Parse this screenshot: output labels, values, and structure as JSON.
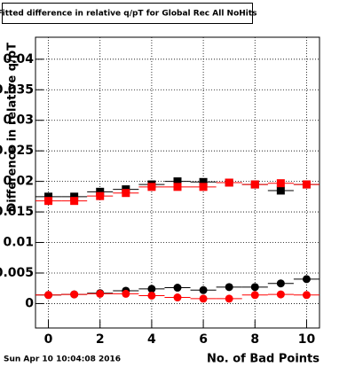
{
  "chart_data": {
    "type": "scatter",
    "title": "Fitted difference in relative q/pT for Global Rec All NoHits",
    "x_label": "No. of Bad Points",
    "y_label": "Difference in relative q/pT",
    "footer": "Sun Apr 10 10:04:08 2016",
    "x": [
      0,
      1,
      2,
      3,
      4,
      5,
      6,
      7,
      8,
      9,
      10
    ],
    "x_error": 0.5,
    "series": [
      {
        "color": "#000000",
        "marker": "square",
        "values": [
          0.0175,
          0.0175,
          0.0183,
          0.0187,
          0.0195,
          0.02,
          0.0199,
          0.0198,
          0.0195,
          0.0185,
          0.0195
        ]
      },
      {
        "color": "#ff0000",
        "marker": "square",
        "values": [
          0.0168,
          0.0168,
          0.0176,
          0.0181,
          0.0191,
          0.0191,
          0.0191,
          0.0198,
          0.0195,
          0.0197,
          0.0195
        ]
      },
      {
        "color": "#000000",
        "marker": "circle",
        "values": [
          0.0014,
          0.0015,
          0.0017,
          0.0021,
          0.0024,
          0.0026,
          0.0022,
          0.0027,
          0.0027,
          0.0033,
          0.004
        ]
      },
      {
        "color": "#ff0000",
        "marker": "circle",
        "values": [
          0.0014,
          0.0015,
          0.0016,
          0.0016,
          0.0013,
          0.001,
          0.0008,
          0.0008,
          0.0014,
          0.0015,
          0.0014
        ]
      }
    ],
    "xlim": [
      -0.5,
      10.5
    ],
    "xticks": [
      0,
      2,
      4,
      6,
      8,
      10
    ],
    "ylim": [
      -0.004,
      0.0436
    ],
    "yticks": [
      0,
      0.005,
      0.01,
      0.015,
      0.02,
      0.025,
      0.03,
      0.035,
      0.04
    ],
    "grid": true
  }
}
